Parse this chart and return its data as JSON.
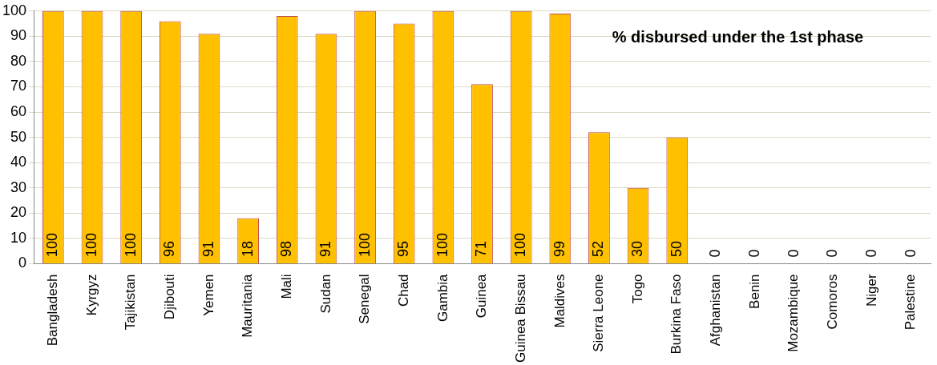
{
  "chart_data": {
    "type": "bar",
    "categories": [
      "Bangladesh",
      "Kyrgyz",
      "Tajikistan",
      "Djibouti",
      "Yemen",
      "Mauritania",
      "Mali",
      "Sudan",
      "Senegal",
      "Chad",
      "Gambia",
      "Guinea",
      "Guinea Bissau",
      "Maldives",
      "Sierra Leone",
      "Togo",
      "Burkina Faso",
      "Afghanistan",
      "Benin",
      "Mozambique",
      "Comoros",
      "Niger",
      "Palestine"
    ],
    "values": [
      100,
      100,
      100,
      96,
      91,
      18,
      98,
      91,
      100,
      95,
      100,
      71,
      100,
      99,
      52,
      30,
      50,
      0,
      0,
      0,
      0,
      0,
      0
    ],
    "color": "#ffc000",
    "ylim": [
      0,
      100
    ],
    "yticks": [
      0,
      10,
      20,
      30,
      40,
      50,
      60,
      70,
      80,
      90,
      100
    ],
    "grid": "y",
    "data_labels": true,
    "annotations": [
      "% disbursed under the 1st phase"
    ]
  }
}
